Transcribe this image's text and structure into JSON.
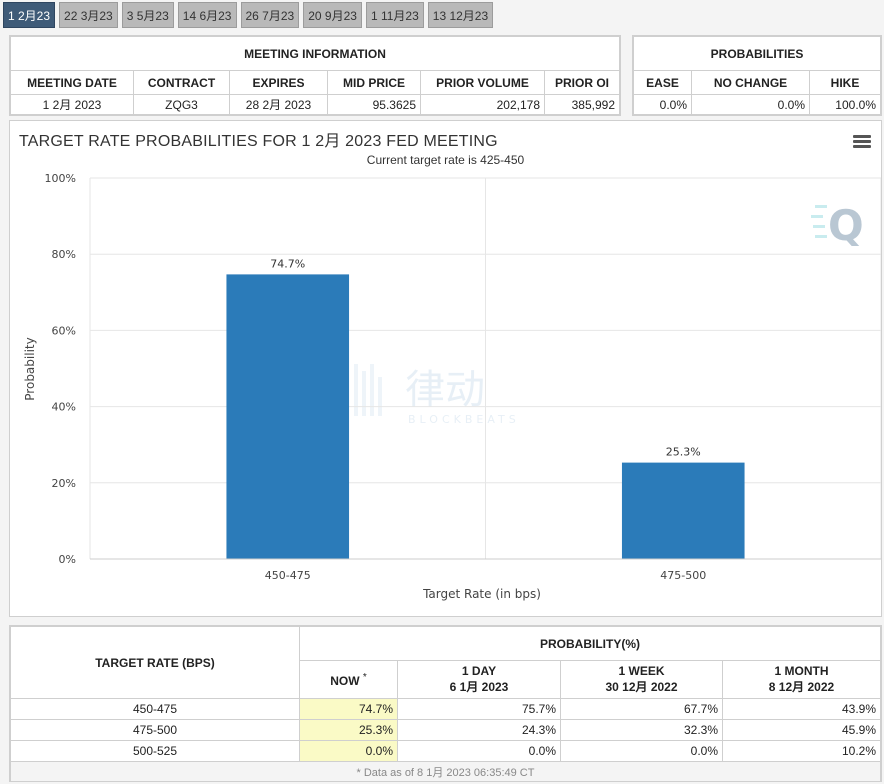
{
  "tabs": [
    "1 2月23",
    "22 3月23",
    "3 5月23",
    "14 6月23",
    "26 7月23",
    "20 9月23",
    "1 11月23",
    "13 12月23"
  ],
  "meeting_info": {
    "title": "MEETING INFORMATION",
    "headers": [
      "MEETING DATE",
      "CONTRACT",
      "EXPIRES",
      "MID PRICE",
      "PRIOR VOLUME",
      "PRIOR OI"
    ],
    "values": [
      "1 2月 2023",
      "ZQG3",
      "28 2月 2023",
      "95.3625",
      "202,178",
      "385,992"
    ]
  },
  "probabilities": {
    "title": "PROBABILITIES",
    "headers": [
      "EASE",
      "NO CHANGE",
      "HIKE"
    ],
    "values": [
      "0.0%",
      "0.0%",
      "100.0%"
    ]
  },
  "watermark": {
    "text": "律动",
    "subtext": "BLOCKBEATS",
    "logo": "Q"
  },
  "colors": {
    "bar": "#2b7bb9",
    "tab_active": "#3f5b78",
    "highlight": "#fafac6"
  },
  "chart_data": {
    "type": "bar",
    "title": "TARGET RATE PROBABILITIES FOR 1 2月 2023 FED MEETING",
    "subtitle": "Current target rate is 425-450",
    "categories": [
      "450-475",
      "475-500"
    ],
    "values": [
      74.7,
      25.3
    ],
    "data_labels": [
      "74.7%",
      "25.3%"
    ],
    "xlabel": "Target Rate (in bps)",
    "ylabel": "Probability",
    "ylim": [
      0,
      100
    ],
    "yticks": [
      "0%",
      "20%",
      "40%",
      "60%",
      "80%",
      "100%"
    ],
    "grid": true
  },
  "prob_table": {
    "col_header": "TARGET RATE (BPS)",
    "group_header": "PROBABILITY(%)",
    "columns": [
      {
        "line1": "NOW",
        "line2": "",
        "note": "*"
      },
      {
        "line1": "1 DAY",
        "line2": "6 1月 2023"
      },
      {
        "line1": "1 WEEK",
        "line2": "30 12月 2022"
      },
      {
        "line1": "1 MONTH",
        "line2": "8 12月 2022"
      }
    ],
    "rows": [
      {
        "rate": "450-475",
        "values": [
          "74.7%",
          "75.7%",
          "67.7%",
          "43.9%"
        ]
      },
      {
        "rate": "475-500",
        "values": [
          "25.3%",
          "24.3%",
          "32.3%",
          "45.9%"
        ]
      },
      {
        "rate": "500-525",
        "values": [
          "0.0%",
          "0.0%",
          "0.0%",
          "10.2%"
        ]
      }
    ],
    "footnote": "* Data as of 8 1月 2023 06:35:49 CT"
  }
}
